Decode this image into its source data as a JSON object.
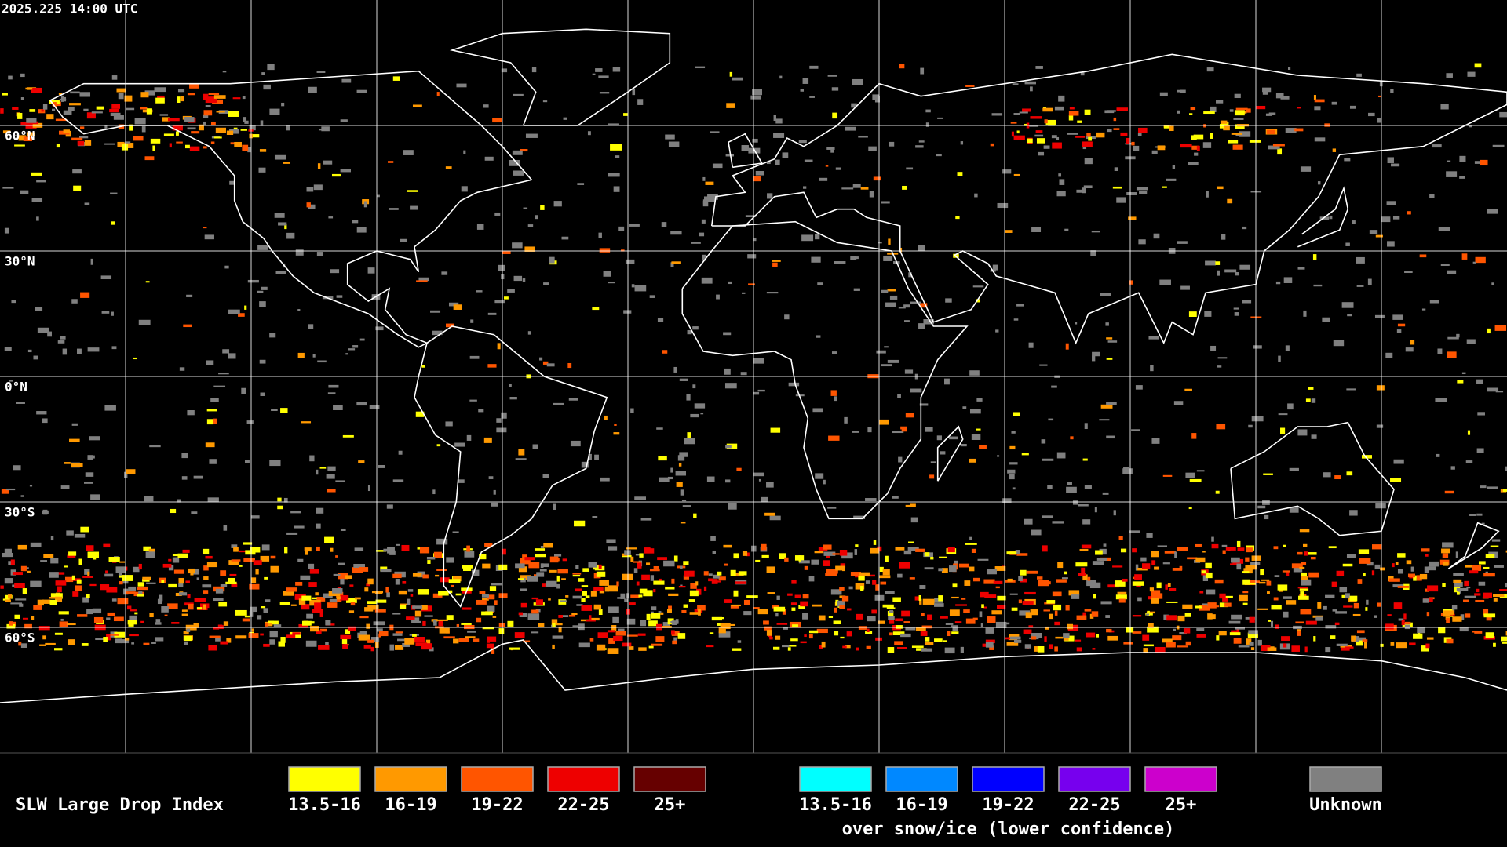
{
  "timestamp": "2025.225 14:00 UTC",
  "latitude_labels": [
    "60°N",
    "30°N",
    "0°N",
    "30°S",
    "60°S"
  ],
  "legend": {
    "title": "SLW Large Drop Index",
    "groups": [
      {
        "items": [
          {
            "label": "13.5-16",
            "color": "#ffff00"
          },
          {
            "label": "16-19",
            "color": "#ff9900"
          },
          {
            "label": "19-22",
            "color": "#ff5500"
          },
          {
            "label": "22-25",
            "color": "#ee0000"
          },
          {
            "label": "25+",
            "color": "#660000"
          }
        ]
      },
      {
        "items": [
          {
            "label": "13.5-16",
            "color": "#00ffff"
          },
          {
            "label": "16-19",
            "color": "#0088ff"
          },
          {
            "label": "19-22",
            "color": "#0000ff"
          },
          {
            "label": "22-25",
            "color": "#7700ee"
          },
          {
            "label": "25+",
            "color": "#cc00cc"
          }
        ],
        "caption": "over snow/ice (lower confidence)"
      },
      {
        "items": [
          {
            "label": "Unknown",
            "color": "#808080"
          }
        ]
      }
    ]
  }
}
